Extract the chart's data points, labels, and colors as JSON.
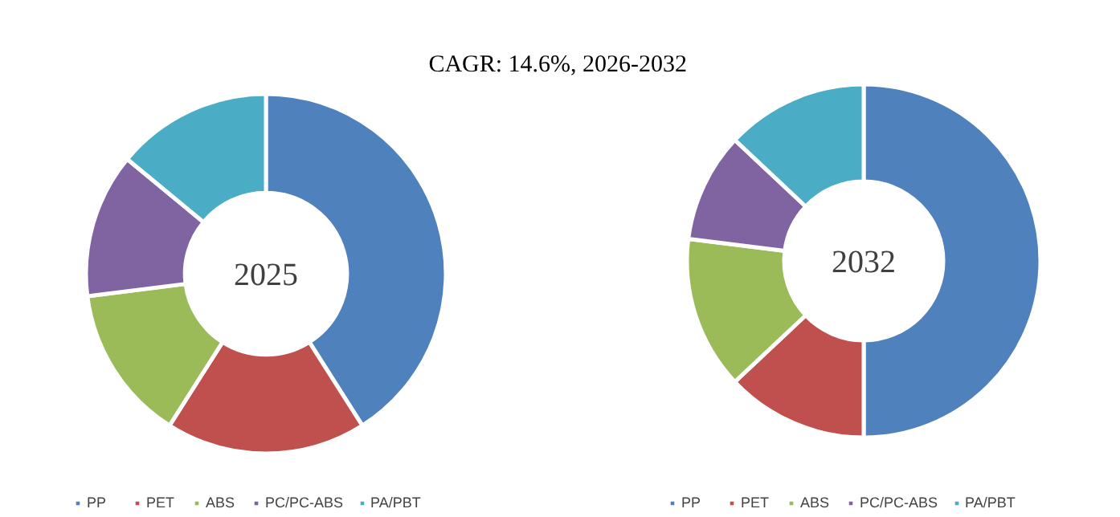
{
  "chart_data": [
    {
      "type": "donut",
      "title": "2025",
      "annotations": [
        "CAGR:  14.6%, 2026-2032"
      ],
      "categories": [
        "PP",
        "PET",
        "ABS",
        "PC/PC-ABS",
        "PA/PBT"
      ],
      "values": [
        41,
        18,
        14,
        13,
        14
      ],
      "colors": [
        "#4f81bd",
        "#c0504d",
        "#9bbb59",
        "#8064a2",
        "#4bacc6"
      ],
      "legend": "bottom"
    },
    {
      "type": "donut",
      "title": "2032",
      "categories": [
        "PP",
        "PET",
        "ABS",
        "PC/PC-ABS",
        "PA/PBT"
      ],
      "values": [
        50,
        13,
        14,
        10,
        13
      ],
      "colors": [
        "#4f81bd",
        "#c0504d",
        "#9bbb59",
        "#8064a2",
        "#4bacc6"
      ],
      "legend": "bottom"
    }
  ]
}
